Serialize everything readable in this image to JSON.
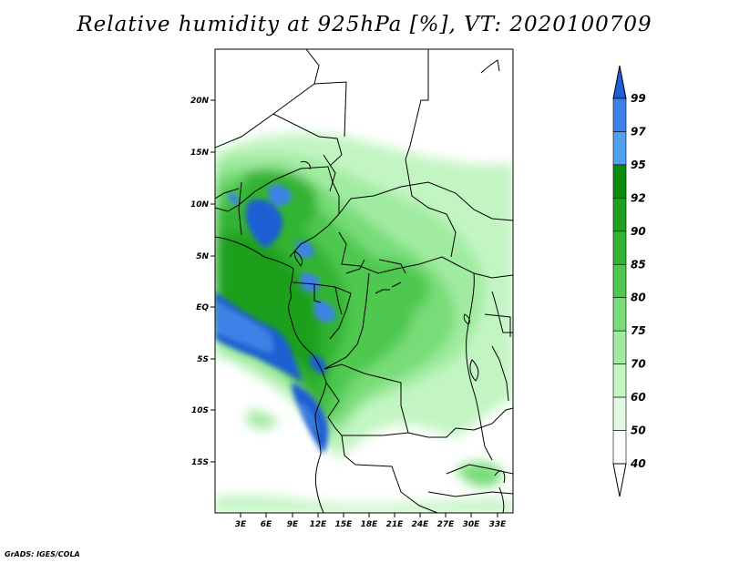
{
  "title": "Relative humidity at 925hPa [%], VT: 2020100709",
  "credit": "GrADS: IGES/COLA",
  "map": {
    "lon_labels": [
      "3E",
      "6E",
      "9E",
      "12E",
      "15E",
      "18E",
      "21E",
      "24E",
      "27E",
      "30E",
      "33E"
    ],
    "lat_labels": [
      "20N",
      "15N",
      "10N",
      "5N",
      "EQ",
      "5S",
      "10S",
      "15S"
    ]
  },
  "colorbar": {
    "levels": [
      "99",
      "97",
      "95",
      "92",
      "90",
      "85",
      "80",
      "75",
      "70",
      "60",
      "50",
      "40"
    ],
    "colors": [
      "#1e5fd2",
      "#3c82e6",
      "#50a0f0",
      "#0a8c0a",
      "#1ea01e",
      "#32b432",
      "#50c850",
      "#78dc78",
      "#a0eba0",
      "#c3f5c3",
      "#e1fae1",
      "#ffffff"
    ]
  }
}
